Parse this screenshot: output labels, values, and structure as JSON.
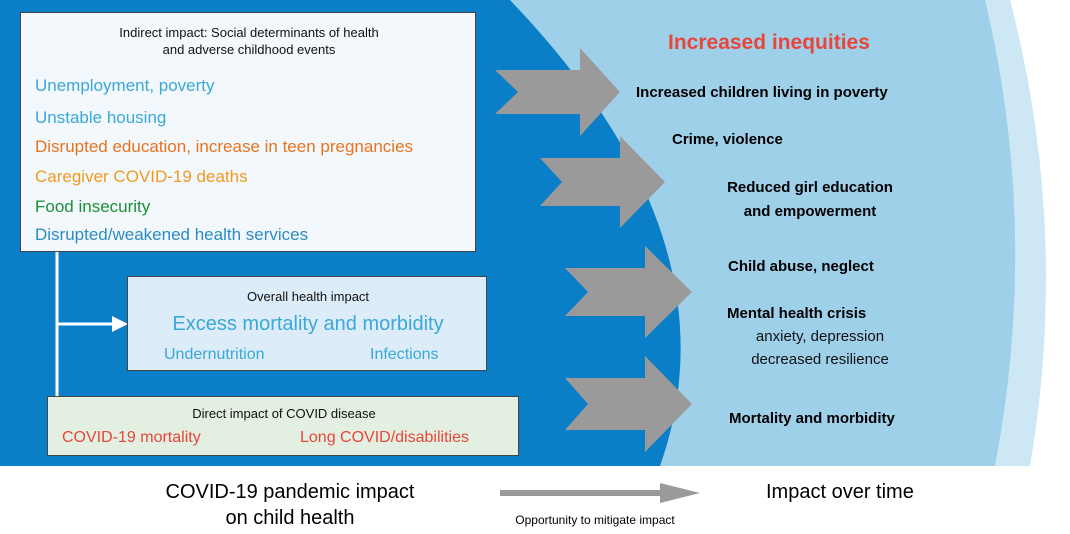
{
  "indirect": {
    "title_line1": "Indirect impact: Social determinants of health",
    "title_line2": "and adverse childhood events",
    "items": [
      {
        "text": "Unemployment, poverty",
        "color": "#3aa8d8"
      },
      {
        "text": "Unstable housing",
        "color": "#3aa8d8"
      },
      {
        "text": "Disrupted education, increase in teen pregnancies",
        "color": "#e8731e"
      },
      {
        "text": "Caregiver COVID-19 deaths",
        "color": "#ef9a22"
      },
      {
        "text": "Food insecurity",
        "color": "#1d8f3a"
      },
      {
        "text": "Disrupted/weakened health services",
        "color": "#2b8cc4"
      }
    ]
  },
  "overall": {
    "title": "Overall health impact",
    "headline": "Excess mortality and morbidity",
    "left": "Undernutrition",
    "right": "Infections"
  },
  "direct": {
    "title": "Direct impact of COVID disease",
    "left": "COVID-19 mortality",
    "right": "Long COVID/disabilities"
  },
  "outcomes": {
    "heading": "Increased inequities",
    "heading_color": "#e8463a",
    "poverty": "Increased children living in poverty",
    "crime": "Crime, violence",
    "girl_line1": "Reduced girl education",
    "girl_line2": "and empowerment",
    "abuse": "Child abuse, neglect",
    "mental_title": "Mental health crisis",
    "mental_line1": "anxiety, depression",
    "mental_line2": "decreased resilience",
    "mortality": "Mortality and morbidity"
  },
  "footer": {
    "left_line1": "COVID-19 pandemic impact",
    "left_line2": "on child health",
    "right": "Impact over time",
    "arrow_caption": "Opportunity to mitigate impact"
  },
  "colors": {
    "dark_blue": "#0a7fc8",
    "light_blue": "#9fd0ea",
    "pale_blue": "#cde7f5",
    "arrow_gray": "#9a9a9a"
  }
}
